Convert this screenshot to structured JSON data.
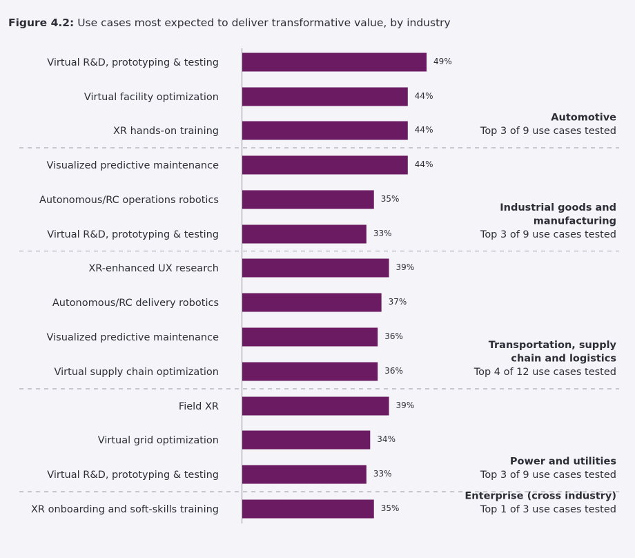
{
  "figure": {
    "label": "Figure 4.2:",
    "caption": "Use cases most expected to deliver transformative value, by industry"
  },
  "colors": {
    "bar": "#6a1b62",
    "axis": "#b8b8c0",
    "separator": "#9a9aa6"
  },
  "chart_data": {
    "type": "bar",
    "orientation": "horizontal",
    "xlim": [
      0,
      100
    ],
    "value_suffix": "%",
    "categories": [
      "Virtual R&D, prototyping & testing",
      "Virtual facility optimization",
      "XR hands-on training",
      "Visualized predictive maintenance",
      "Autonomous/RC operations robotics",
      "Virtual R&D, prototyping & testing",
      "XR-enhanced UX research",
      "Autonomous/RC delivery robotics",
      "Visualized predictive maintenance",
      "Virtual supply chain optimization",
      "Field XR",
      "Virtual grid optimization",
      "Virtual R&D, prototyping & testing",
      "XR onboarding and soft-skills training"
    ],
    "values": [
      49,
      44,
      44,
      44,
      35,
      33,
      39,
      37,
      36,
      36,
      39,
      34,
      33,
      35
    ],
    "value_labels": [
      "49%",
      "44%",
      "44%",
      "44%",
      "35%",
      "33%",
      "39%",
      "37%",
      "36%",
      "36%",
      "39%",
      "34%",
      "33%",
      "35%"
    ],
    "groups": [
      {
        "name": [
          "Automotive"
        ],
        "subtitle": "Top 3 of 9 use cases tested",
        "start": 0,
        "end": 2
      },
      {
        "name": [
          "Industrial goods and",
          "manufacturing"
        ],
        "subtitle": "Top 3 of 9 use cases tested",
        "start": 3,
        "end": 5
      },
      {
        "name": [
          "Transportation, supply",
          "chain and logistics"
        ],
        "subtitle": "Top 4 of 12 use cases tested",
        "start": 6,
        "end": 9
      },
      {
        "name": [
          "Power and utilities"
        ],
        "subtitle": "Top 3 of 9 use cases tested",
        "start": 10,
        "end": 12
      },
      {
        "name": [
          "Enterprise (cross industry)"
        ],
        "subtitle": "Top 1 of 3 use cases tested",
        "start": 13,
        "end": 13
      }
    ]
  }
}
